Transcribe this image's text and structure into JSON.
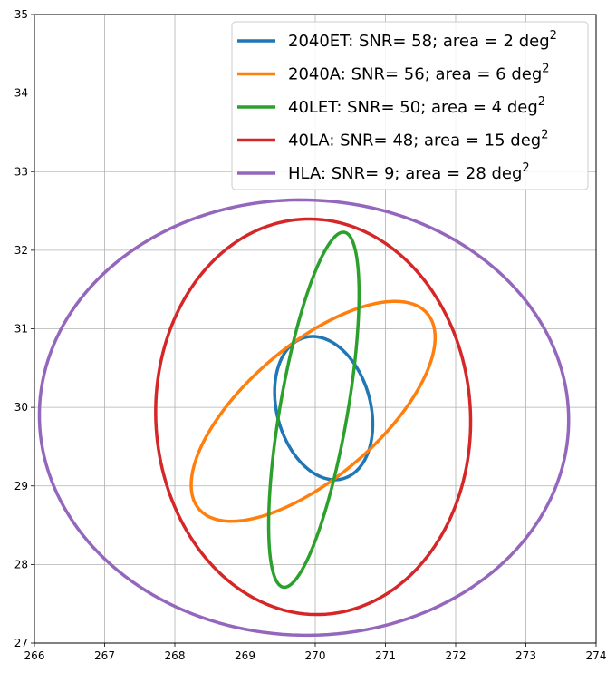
{
  "chart_data": {
    "type": "line",
    "title": "",
    "xlabel": "",
    "ylabel": "",
    "xlim": [
      266,
      274
    ],
    "ylim": [
      27,
      35
    ],
    "xticks": [
      266,
      267,
      268,
      269,
      270,
      271,
      272,
      273,
      274
    ],
    "yticks": [
      27,
      28,
      29,
      30,
      31,
      32,
      33,
      34,
      35
    ],
    "grid": true,
    "legend_position": "top-right",
    "series": [
      {
        "name": "2040ET: SNR= 58; area = 2 deg",
        "sup": "2",
        "color": "#1f77b4",
        "center": [
          270.12,
          29.99
        ],
        "semi_axes": [
          0.66,
          0.94
        ],
        "angle_deg": 20
      },
      {
        "name": "2040A: SNR= 56; area = 6 deg",
        "sup": "2",
        "color": "#ff7f0e",
        "center": [
          269.97,
          29.95
        ],
        "semi_axes": [
          2.05,
          0.88
        ],
        "angle_deg": 36
      },
      {
        "name": "40LET: SNR= 50; area = 4 deg",
        "sup": "2",
        "color": "#2ca02c",
        "center": [
          269.98,
          29.97
        ],
        "semi_axes": [
          0.48,
          2.3
        ],
        "angle_deg": -11
      },
      {
        "name": "40LA: SNR= 48; area = 15 deg",
        "sup": "2",
        "color": "#d62728",
        "center": [
          269.97,
          29.88
        ],
        "semi_axes": [
          2.24,
          2.52
        ],
        "angle_deg": 6
      },
      {
        "name": "HLA: SNR= 9; area = 28 deg",
        "sup": "2",
        "color": "#9467bd",
        "center": [
          269.84,
          29.87
        ],
        "semi_axes": [
          3.77,
          2.77
        ],
        "angle_deg": -1
      }
    ]
  }
}
